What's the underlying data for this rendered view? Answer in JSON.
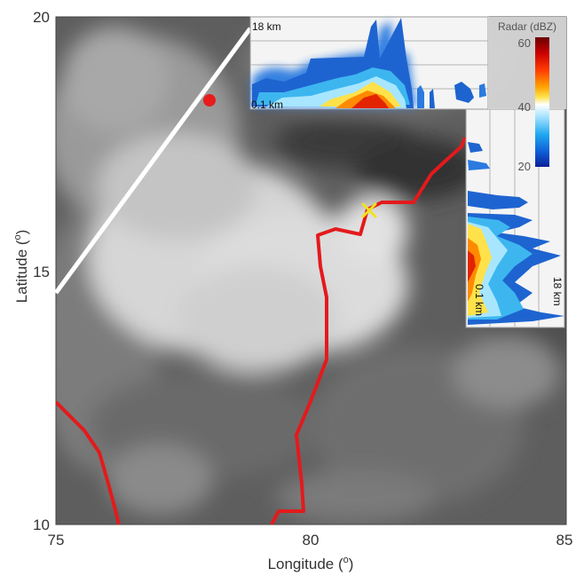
{
  "figure": {
    "axes": {
      "x_label_prefix": "Longitude (",
      "x_label_suffix": ")",
      "y_label_prefix": "Latitude (",
      "y_label_suffix": ")",
      "degree_symbol": "o",
      "x_ticks": [
        "75",
        "80",
        "85"
      ],
      "y_ticks": [
        "20",
        "15",
        "10"
      ]
    },
    "top_inset": {
      "top_height_label": "18 km",
      "bottom_height_label": "0.1 km"
    },
    "right_inset": {
      "height_label_low": "0.1 km",
      "height_label_high": "18 km"
    },
    "colorbar": {
      "title": "Radar (dBZ)",
      "ticks": [
        "60",
        "40",
        "20"
      ]
    },
    "markers": {
      "red_dot_color": "#e81c1c",
      "cross_color": "#f2e21b",
      "track_color": "#e31a1c",
      "line_color": "#ffffff"
    }
  }
}
